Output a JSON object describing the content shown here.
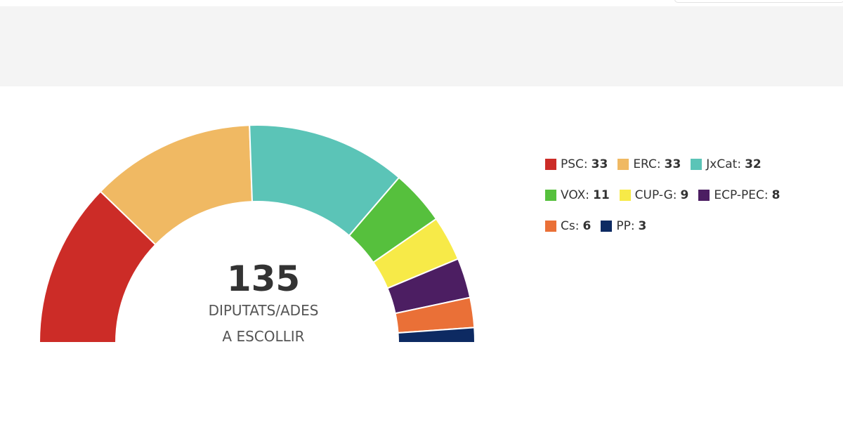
{
  "chart_data": {
    "type": "half-donut",
    "categories": [
      "PSC:",
      "ERC:",
      "JxCat:",
      "VOX:",
      "CUP-G:",
      "ECP-PEC:",
      "Cs:",
      "PP:"
    ],
    "values": [
      33,
      33,
      32,
      11,
      9,
      8,
      6,
      3
    ],
    "colors": [
      "#cc2c27",
      "#f0b963",
      "#5bc4b7",
      "#56c03d",
      "#f7ea48",
      "#4c1e62",
      "#ea7037",
      "#0d2a62"
    ],
    "center_value": "135",
    "center_text": [
      "DIPUTATS/ADES",
      "A ESCOLLIR"
    ]
  }
}
